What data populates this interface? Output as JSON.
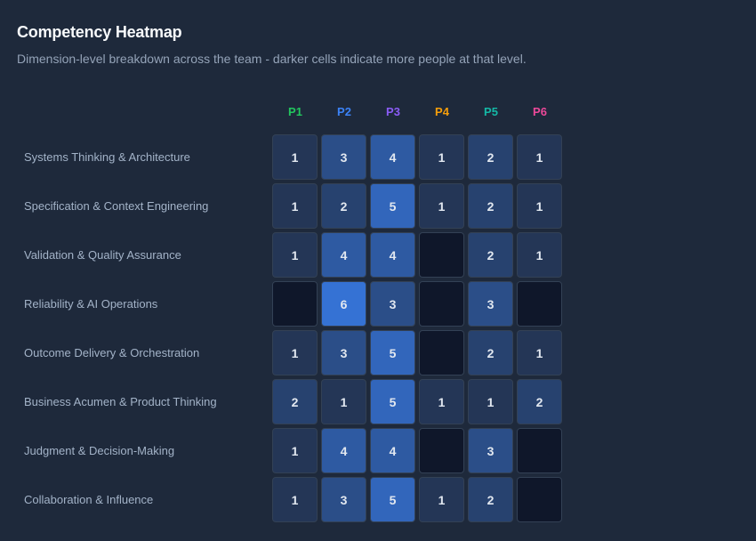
{
  "title": "Competency Heatmap",
  "subtitle": "Dimension-level breakdown across the team - darker cells indicate more people at that level.",
  "chart_data": {
    "type": "heatmap",
    "columns": [
      "P1",
      "P2",
      "P3",
      "P4",
      "P5",
      "P6"
    ],
    "column_colors": [
      "#22c55e",
      "#3b82f6",
      "#8b5cf6",
      "#f59e0b",
      "#14b8a6",
      "#ec4899"
    ],
    "rows": [
      "Systems Thinking & Architecture",
      "Specification & Context Engineering",
      "Validation & Quality Assurance",
      "Reliability & AI Operations",
      "Outcome Delivery & Orchestration",
      "Business Acumen & Product Thinking",
      "Judgment & Decision-Making",
      "Collaboration & Influence"
    ],
    "values": [
      [
        1,
        3,
        4,
        1,
        2,
        1
      ],
      [
        1,
        2,
        5,
        1,
        2,
        1
      ],
      [
        1,
        4,
        4,
        0,
        2,
        1
      ],
      [
        0,
        6,
        3,
        0,
        3,
        0
      ],
      [
        1,
        3,
        5,
        0,
        2,
        1
      ],
      [
        2,
        1,
        5,
        1,
        1,
        2
      ],
      [
        1,
        4,
        4,
        0,
        3,
        0
      ],
      [
        1,
        3,
        5,
        1,
        2,
        0
      ]
    ],
    "empty_color": "#0f172a",
    "scale_color": "#3b82f6"
  }
}
